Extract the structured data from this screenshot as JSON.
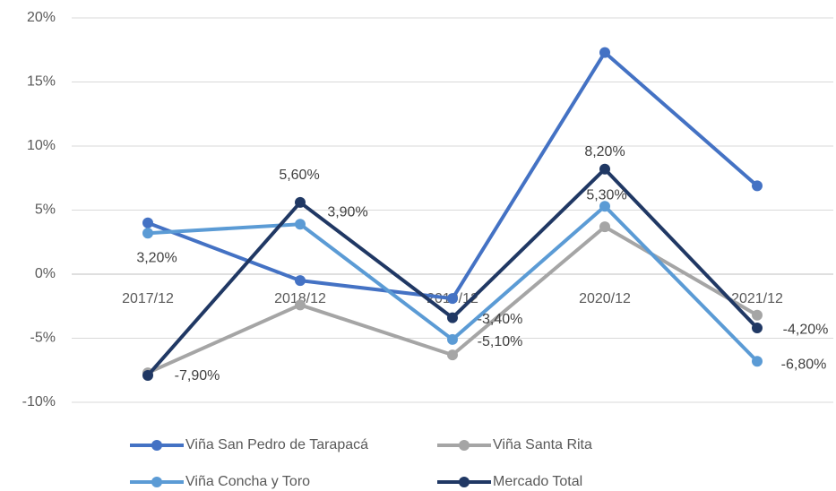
{
  "chart_data": {
    "type": "line",
    "categories": [
      "2017/12",
      "2018/12",
      "2019/12",
      "2020/12",
      "2021/12"
    ],
    "series": [
      {
        "name": "Viña San Pedro de Tarapacá",
        "color": "#4472c4",
        "values": [
          4.0,
          -0.5,
          -1.9,
          17.3,
          6.9
        ]
      },
      {
        "name": "Viña Santa Rita",
        "color": "#a5a5a5",
        "values": [
          -7.7,
          -2.4,
          -6.3,
          3.7,
          -3.2
        ]
      },
      {
        "name": "Viña Concha y Toro",
        "color": "#5b9bd5",
        "values": [
          3.2,
          3.9,
          -5.1,
          5.3,
          -6.8
        ],
        "value_labels": [
          "3,20%",
          "3,90%",
          "-5,10%",
          "5,30%",
          "-6,80%"
        ]
      },
      {
        "name": "Mercado Total",
        "color": "#203864",
        "values": [
          -7.9,
          5.6,
          -3.4,
          8.2,
          -4.2
        ],
        "value_labels": [
          "-7,90%",
          "5,60%",
          "-3,40%",
          "8,20%",
          "-4,20%"
        ]
      }
    ],
    "ylim": [
      -10,
      20
    ],
    "yticks": [
      {
        "value": -10,
        "label": "-10%"
      },
      {
        "value": -5,
        "label": "-5%"
      },
      {
        "value": 0,
        "label": "0%"
      },
      {
        "value": 5,
        "label": "5%"
      },
      {
        "value": 10,
        "label": "10%"
      },
      {
        "value": 15,
        "label": "15%"
      },
      {
        "value": 20,
        "label": "20%"
      }
    ],
    "grid": true,
    "legend": "bottom"
  }
}
